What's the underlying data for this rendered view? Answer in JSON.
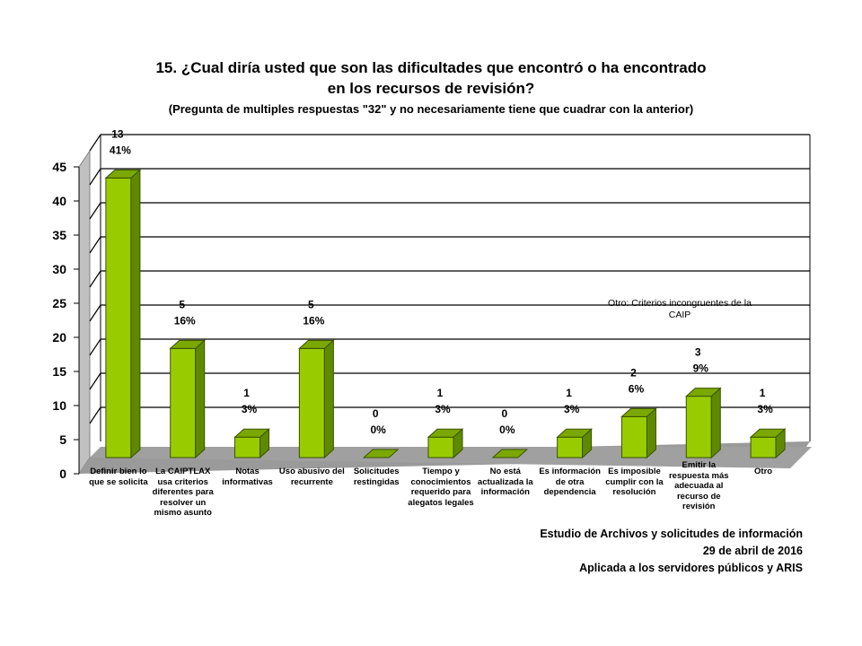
{
  "header": {
    "title_line1": "15. ¿Cual diría usted que son las dificultades que encontró o ha encontrado",
    "title_line2": "en los recursos de revisión?",
    "subtitle": "(Pregunta de multiples respuestas \"32\" y no necesariamente tiene que cuadrar con la anterior)"
  },
  "chart_data": {
    "type": "bar",
    "categories": [
      "Definir bien lo que se solicita",
      "La CAIPTLAX usa criterios diferentes para resolver un mismo asunto",
      "Notas informativas",
      "Uso abusivo del recurrente",
      "Solicitudes restingidas",
      "Tiempo y conocimientos requerido para alegatos legales",
      "No está actualizada la información",
      "Es información de otra dependencia",
      "Es imposible cumplir con la resolución",
      "Emitir la respuesta más adecuada al recurso de revisión",
      "Otro"
    ],
    "values": [
      41,
      16,
      3,
      16,
      0,
      3,
      0,
      3,
      6,
      9,
      3
    ],
    "counts": [
      "13",
      "5",
      "1",
      "5",
      "0",
      "1",
      "0",
      "1",
      "2",
      "3",
      "1"
    ],
    "percent_labels": [
      "41%",
      "16%",
      "3%",
      "16%",
      "0%",
      "3%",
      "0%",
      "3%",
      "6%",
      "9%",
      "3%"
    ],
    "y_ticks": [
      "0",
      "5",
      "10",
      "15",
      "20",
      "25",
      "30",
      "35",
      "40",
      "45"
    ],
    "ylim": [
      0,
      45
    ],
    "grid": true,
    "bar_color": "#99cc00",
    "note": "Otro: Criterios incongruentes de la CAIP"
  },
  "footer": {
    "line1": "Estudio de Archivos y solicitudes de información",
    "line2": "29 de abril de 2016",
    "line3": "Aplicada a los servidores públicos y ARIS"
  }
}
